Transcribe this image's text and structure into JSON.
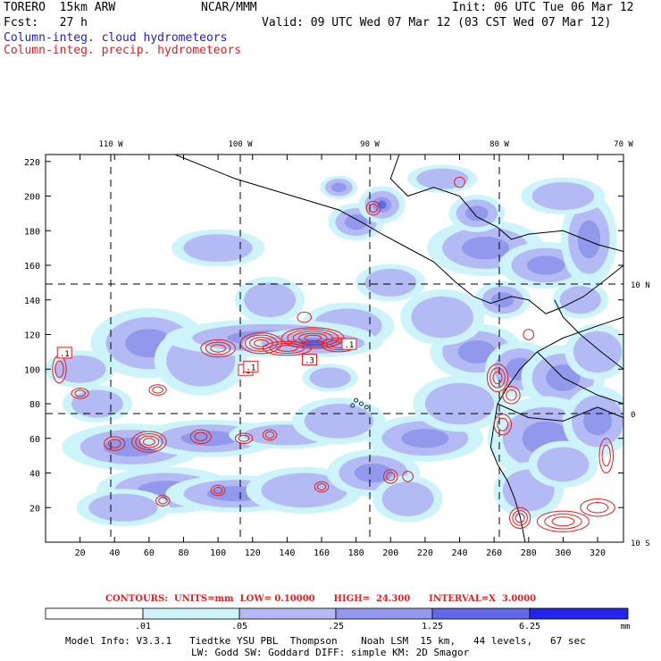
{
  "header": {
    "model": "TORERO  15km ARW",
    "org": "NCAR/MMM",
    "init": "Init: 06 UTC Tue 06 Mar 12",
    "fcst": "Fcst:   27 h",
    "valid": "Valid: 09 UTC Wed 07 Mar 12 (03 CST Wed 07 Mar 12)",
    "field_cloud": "Column-integ. cloud hydrometeors",
    "field_precip": "Column-integ. precip. hydrometeors"
  },
  "colors": {
    "cloud": "#2020d0",
    "precip": "#e02020",
    "shades": [
      "#ffffff",
      "#ccf4fa",
      "#b4baf4",
      "#9299ec",
      "#6168ea",
      "#2424ee"
    ]
  },
  "chart_data": {
    "type": "heatmap",
    "x_ticks": [
      "20",
      "40",
      "60",
      "80",
      "100",
      "120",
      "140",
      "160",
      "180",
      "200",
      "220",
      "240",
      "260",
      "280",
      "300",
      "320"
    ],
    "y_ticks": [
      "20",
      "40",
      "60",
      "80",
      "100",
      "120",
      "140",
      "160",
      "180",
      "200",
      "220"
    ],
    "lon_labels": [
      "110 W",
      "100 W",
      "90 W",
      "80 W",
      "70 W"
    ],
    "lat_labels": [
      "10 N",
      "0",
      "10 S"
    ],
    "xlim": [
      0,
      335
    ],
    "ylim": [
      0,
      224
    ],
    "contour_labels": [
      ".1",
      ".1",
      ".1",
      ".3",
      ".1"
    ],
    "contours": {
      "units": "mm",
      "low": "0.10000",
      "high": "24.300",
      "interval": "3.0000",
      "text": "CONTOURS:  UNITS=mm  LOW= 0.10000      HIGH=  24.300      INTERVAL=X  3.0000"
    },
    "colorbar": {
      "labels": [
        ".01",
        ".05",
        ".25",
        "1.25",
        "6.25"
      ],
      "unit": "mm"
    }
  },
  "footer": {
    "line1": "Model Info: V3.3.1   Tiedtke YSU PBL  Thompson    Noah LSM  15 km,   44 levels,   67 sec",
    "line2": "LW: Godd SW: Goddard DIFF: simple KM: 2D Smagor"
  }
}
